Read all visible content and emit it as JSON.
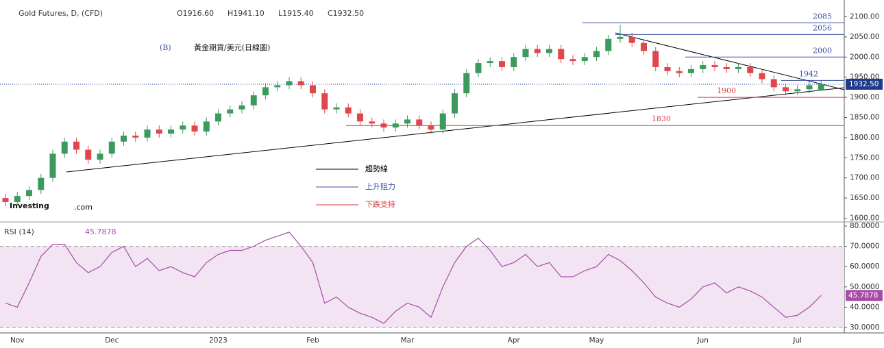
{
  "chart_data": [
    {
      "type": "candlestick",
      "title": "Gold Futures, D, (CFD)",
      "ohlc_labels": [
        "O1916.60",
        "H1941.10",
        "L1915.40",
        "C1932.50"
      ],
      "annotation_prefix": "(B)",
      "annotation": "黃金期貨/美元(日線圖)",
      "watermark": [
        "Investing",
        ".com"
      ],
      "categories": [
        null,
        "Nov",
        null,
        null,
        null,
        null,
        null,
        null,
        null,
        "Dec",
        null,
        null,
        null,
        null,
        null,
        null,
        null,
        null,
        "2023",
        null,
        null,
        null,
        null,
        null,
        null,
        null,
        "Feb",
        null,
        null,
        null,
        null,
        null,
        null,
        null,
        "Mar",
        null,
        null,
        null,
        null,
        null,
        null,
        null,
        null,
        "Apr",
        null,
        null,
        null,
        null,
        null,
        null,
        "May",
        null,
        null,
        null,
        null,
        null,
        null,
        null,
        null,
        "Jun",
        null,
        null,
        null,
        null,
        null,
        null,
        null,
        "Jul",
        null,
        null
      ],
      "open": [
        1650,
        1640,
        1655,
        1670,
        1700,
        1760,
        1790,
        1770,
        1745,
        1760,
        1790,
        1805,
        1800,
        1820,
        1810,
        1820,
        1830,
        1815,
        1840,
        1860,
        1870,
        1880,
        1905,
        1925,
        1930,
        1940,
        1930,
        1910,
        1870,
        1875,
        1860,
        1840,
        1835,
        1825,
        1835,
        1845,
        1830,
        1820,
        1860,
        1910,
        1960,
        1985,
        1990,
        1975,
        2000,
        2020,
        2010,
        2020,
        1995,
        1990,
        2000,
        2015,
        2045,
        2050,
        2035,
        2015,
        1975,
        1965,
        1960,
        1970,
        1980,
        1975,
        1970,
        1975,
        1960,
        1945,
        1925,
        1915,
        1920,
        1916.6
      ],
      "high": [
        1660,
        1665,
        1680,
        1710,
        1770,
        1800,
        1800,
        1780,
        1770,
        1800,
        1815,
        1815,
        1830,
        1830,
        1830,
        1840,
        1840,
        1850,
        1870,
        1880,
        1890,
        1915,
        1935,
        1940,
        1950,
        1950,
        1940,
        1920,
        1885,
        1885,
        1870,
        1850,
        1845,
        1845,
        1855,
        1855,
        1840,
        1870,
        1920,
        1970,
        1995,
        2000,
        2000,
        2010,
        2030,
        2030,
        2030,
        2030,
        2005,
        2010,
        2025,
        2055,
        2080,
        2060,
        2045,
        2025,
        1985,
        1975,
        1980,
        1990,
        1990,
        1985,
        1985,
        1985,
        1970,
        1955,
        1935,
        1930,
        1940,
        1941.1
      ],
      "low": [
        1630,
        1630,
        1645,
        1660,
        1690,
        1750,
        1760,
        1735,
        1735,
        1750,
        1780,
        1790,
        1790,
        1800,
        1800,
        1810,
        1805,
        1805,
        1830,
        1850,
        1860,
        1870,
        1895,
        1915,
        1920,
        1920,
        1900,
        1860,
        1860,
        1850,
        1830,
        1825,
        1815,
        1815,
        1825,
        1820,
        1810,
        1810,
        1850,
        1900,
        1950,
        1975,
        1965,
        1965,
        1990,
        2000,
        2000,
        1985,
        1980,
        1980,
        1990,
        2005,
        2035,
        2025,
        2005,
        1965,
        1955,
        1950,
        1950,
        1960,
        1965,
        1960,
        1960,
        1950,
        1935,
        1915,
        1905,
        1905,
        1910,
        1915.4
      ],
      "close": [
        1640,
        1655,
        1670,
        1700,
        1760,
        1790,
        1770,
        1745,
        1760,
        1790,
        1805,
        1800,
        1820,
        1810,
        1820,
        1830,
        1815,
        1840,
        1860,
        1870,
        1880,
        1905,
        1925,
        1930,
        1940,
        1930,
        1910,
        1870,
        1875,
        1860,
        1840,
        1835,
        1825,
        1835,
        1845,
        1830,
        1820,
        1860,
        1910,
        1960,
        1985,
        1990,
        1975,
        2000,
        2020,
        2010,
        2020,
        1995,
        1990,
        2000,
        2015,
        2045,
        2050,
        2035,
        2015,
        1975,
        1965,
        1960,
        1970,
        1980,
        1975,
        1970,
        1975,
        1960,
        1945,
        1925,
        1915,
        1920,
        1930,
        1932.5
      ],
      "up_color": "#3c9a5f",
      "down_color": "#e0474c",
      "ylim": [
        1594,
        2128
      ],
      "yticks": [
        {
          "value": 1600,
          "label": "1600.00"
        },
        {
          "value": 1650,
          "label": "1650.00"
        },
        {
          "value": 1700,
          "label": "1700.00"
        },
        {
          "value": 1750,
          "label": "1750.00"
        },
        {
          "value": 1800,
          "label": "1800.00"
        },
        {
          "value": 1850,
          "label": "1850.00"
        },
        {
          "value": 1900,
          "label": "1900.00"
        },
        {
          "value": 1950,
          "label": "1950.00"
        },
        {
          "value": 2000,
          "label": "2000.00"
        },
        {
          "value": 2050,
          "label": "2050.00"
        },
        {
          "value": 2100,
          "label": "2100.00"
        }
      ],
      "last_price": {
        "value": 1932.5,
        "label": "1932.50"
      },
      "levels": [
        {
          "value": 2085,
          "color": "#3a4fa0"
        },
        {
          "value": 2056,
          "color": "#3a4fa0"
        },
        {
          "value": 2000,
          "color": "#3a4fa0"
        },
        {
          "value": 1942,
          "color": "#3a4fa0"
        },
        {
          "value": 1900,
          "color": "#d63a3a"
        },
        {
          "value": 1830,
          "color": "#d63a3a"
        }
      ],
      "legend": [
        {
          "name": "趨勢線",
          "color": "#000000"
        },
        {
          "name": "上升阻力",
          "color": "#3a4fa0"
        },
        {
          "name": "下跌支持",
          "color": "#d63a3a"
        }
      ]
    },
    {
      "type": "line",
      "title": "RSI (14)",
      "color": "#a64ca6",
      "values": [
        42,
        40,
        52,
        65,
        71,
        71,
        62,
        57,
        60,
        67,
        70,
        60,
        64,
        58,
        60,
        57,
        55,
        62,
        66,
        68,
        68,
        70,
        73,
        75,
        77,
        70,
        62,
        42,
        45,
        40,
        37,
        35,
        32,
        38,
        42,
        40,
        35,
        50,
        62,
        70,
        74,
        68,
        60,
        62,
        66,
        60,
        62,
        55,
        55,
        58,
        60,
        66,
        63,
        58,
        52,
        45,
        42,
        40,
        44,
        50,
        52,
        47,
        50,
        48,
        45,
        40,
        35,
        36,
        40,
        45.7878
      ],
      "ylim": [
        27.3,
        81.35
      ],
      "band": [
        30,
        70
      ],
      "yticks": [
        {
          "value": 30,
          "label": "30.0000"
        },
        {
          "value": 40,
          "label": "40.0000"
        },
        {
          "value": 50,
          "label": "50.0000"
        },
        {
          "value": 60,
          "label": "60.0000"
        },
        {
          "value": 70,
          "label": "70.0000"
        },
        {
          "value": 80,
          "label": "80.0000"
        }
      ]
    }
  ]
}
